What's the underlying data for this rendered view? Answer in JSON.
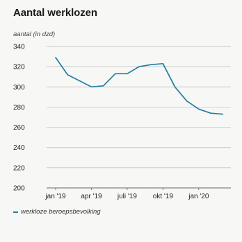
{
  "chart_data": {
    "type": "line",
    "title": "Aantal werklozen",
    "ylabel": "aantal (in dzd)",
    "xlabel": "",
    "ylim": [
      200,
      340
    ],
    "yticks": [
      200,
      220,
      240,
      260,
      280,
      300,
      320,
      340
    ],
    "xtick_labels": [
      "jan '19",
      "apr '19",
      "juli '19",
      "okt '19",
      "jan '20"
    ],
    "xtick_month_index": [
      0,
      3,
      6,
      9,
      12
    ],
    "x": [
      "2019-01",
      "2019-02",
      "2019-03",
      "2019-04",
      "2019-05",
      "2019-06",
      "2019-07",
      "2019-08",
      "2019-09",
      "2019-10",
      "2019-11",
      "2019-12",
      "2020-01",
      "2020-02",
      "2020-03"
    ],
    "series": [
      {
        "name": "werkloze beroepsbevolking",
        "color": "#1f7ea1",
        "values": [
          329,
          312,
          306,
          300,
          301,
          313,
          313,
          320,
          322,
          323,
          300,
          286,
          278,
          274,
          273
        ]
      }
    ],
    "grid": true,
    "legend_position": "bottom-left"
  }
}
